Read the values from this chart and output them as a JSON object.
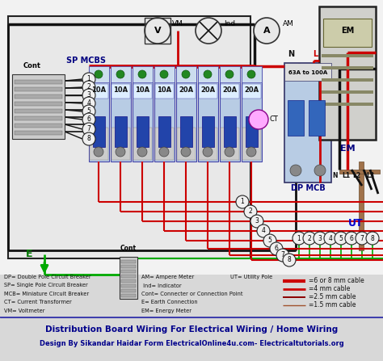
{
  "bg_color": "#d8d8d8",
  "diagram_bg": "#f0f0f0",
  "title1": "Distribution Board Wiring For Electrical Wiring / Home Wiring",
  "title2": "Design By Sikandar Haidar Form ElectricalOnline4u.com- Electricaltutorials.org",
  "title_color": "#00008B",
  "legend_items": [
    {
      "label": "=6 or 8 mm cable",
      "color": "#cc0000",
      "lw": 3.0
    },
    {
      "label": "=4 mm cable",
      "color": "#cc0000",
      "lw": 2.0
    },
    {
      "label": "=2.5 mm cable",
      "color": "#8B0000",
      "lw": 1.4
    },
    {
      "label": "=1.5 mm cable",
      "color": "#a0522d",
      "lw": 1.0
    }
  ],
  "abbrev_left": [
    "DP= Double Pole Circuit Breaker",
    "SP= Single Pole Circuit Breaker",
    "MCB= Miniature Circuit Breaker",
    "CT= Current Transformer",
    "VM= Voltmeter"
  ],
  "abbrev_mid": [
    "AM= Ampere Meter",
    " Ind= Indicator",
    "Cont= Connecter or Connection Point",
    "E= Earth Connection",
    "EM= Energy Meter"
  ],
  "abbrev_right": [
    "UT= Utility Pole"
  ],
  "mcb_labels": [
    "10A",
    "10A",
    "10A",
    "10A",
    "20A",
    "20A",
    "20A",
    "20A"
  ],
  "wire_red": "#cc0000",
  "wire_black": "#111111",
  "wire_green": "#00aa00",
  "wire_dark_red": "#8B0000",
  "sp_mcbs_label": "SP MCBS",
  "dp_mcb_label": "DP MCB",
  "em_label": "EM",
  "ut_label": "UT",
  "cont_label": "Cont",
  "e_label": "E"
}
